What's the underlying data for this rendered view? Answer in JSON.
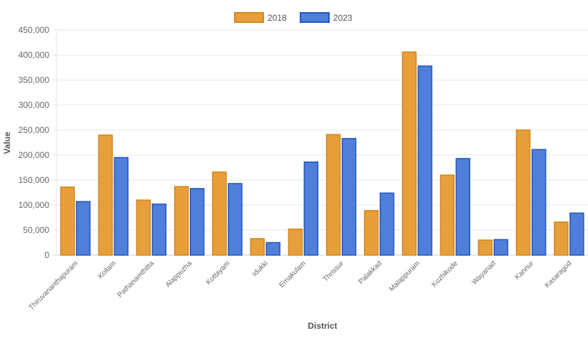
{
  "chart_data": {
    "type": "bar",
    "title": "",
    "xlabel": "District",
    "ylabel": "Value",
    "ylim": [
      0,
      450000
    ],
    "yticks": [
      0,
      50000,
      100000,
      150000,
      200000,
      250000,
      300000,
      350000,
      400000,
      450000
    ],
    "grid": true,
    "legend": "top",
    "categories": [
      "Thiruvananthapuram",
      "Kollam",
      "Pathanamthitta",
      "Alappuzha",
      "Kottayam",
      "Idukki",
      "Ernakulam",
      "Thrissur",
      "Palakkad",
      "Malappuram",
      "Kozhikode",
      "Wayanad",
      "Kannur",
      "Kasaragod"
    ],
    "series": [
      {
        "name": "2018",
        "color": "#E69F3A",
        "border": "#D4861E",
        "values": [
          136000,
          240000,
          110000,
          137000,
          166000,
          33000,
          52000,
          241000,
          89000,
          406000,
          160000,
          30000,
          250000,
          66000
        ]
      },
      {
        "name": "2023",
        "color": "#4F7FD8",
        "border": "#2456C0",
        "values": [
          107000,
          195000,
          102000,
          133000,
          143000,
          25000,
          186000,
          233000,
          124000,
          378000,
          193000,
          31000,
          211000,
          84000
        ]
      }
    ]
  }
}
